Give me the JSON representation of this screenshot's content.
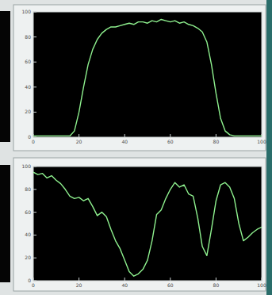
{
  "chart_data": [
    {
      "type": "line",
      "color": "#8ef08e",
      "grid": false,
      "x": [
        0,
        2,
        4,
        6,
        8,
        10,
        12,
        14,
        16,
        18,
        20,
        22,
        24,
        26,
        28,
        30,
        32,
        34,
        36,
        38,
        40,
        42,
        44,
        46,
        48,
        50,
        52,
        54,
        56,
        58,
        60,
        62,
        64,
        66,
        68,
        70,
        72,
        74,
        76,
        78,
        80,
        82,
        84,
        86,
        88,
        90,
        92,
        94,
        96,
        98,
        100
      ],
      "values": [
        1,
        1,
        1,
        1,
        1,
        1,
        1,
        1,
        1,
        5,
        20,
        40,
        58,
        70,
        78,
        83,
        86,
        88,
        88,
        89,
        90,
        91,
        90,
        92,
        92,
        91,
        93,
        92,
        94,
        93,
        92,
        93,
        91,
        92,
        90,
        89,
        87,
        84,
        76,
        58,
        35,
        15,
        5,
        2,
        1,
        1,
        1,
        1,
        1,
        1,
        1
      ],
      "xlim": [
        0,
        100
      ],
      "xticks": [
        0,
        20,
        40,
        60,
        80,
        100
      ],
      "ylim": [
        0,
        100
      ],
      "yticks": [
        0,
        20,
        40,
        60,
        80,
        100
      ]
    },
    {
      "type": "line",
      "color": "#8ef08e",
      "grid": false,
      "x": [
        0,
        2,
        4,
        6,
        8,
        10,
        12,
        14,
        16,
        18,
        20,
        22,
        24,
        26,
        28,
        30,
        32,
        34,
        36,
        38,
        40,
        42,
        44,
        46,
        48,
        50,
        52,
        54,
        56,
        58,
        60,
        62,
        64,
        66,
        68,
        70,
        72,
        74,
        76,
        78,
        80,
        82,
        84,
        86,
        88,
        90,
        92,
        94,
        96,
        98,
        100
      ],
      "values": [
        95,
        93,
        94,
        90,
        92,
        88,
        85,
        80,
        74,
        72,
        73,
        70,
        72,
        65,
        57,
        60,
        56,
        45,
        35,
        28,
        18,
        8,
        4,
        6,
        10,
        18,
        35,
        58,
        62,
        72,
        80,
        86,
        82,
        84,
        76,
        74,
        55,
        30,
        22,
        45,
        70,
        84,
        86,
        82,
        72,
        50,
        35,
        38,
        42,
        45,
        47
      ],
      "xlim": [
        0,
        100
      ],
      "xticks": [
        0,
        20,
        40,
        60,
        80,
        100
      ],
      "ylim": [
        0,
        100
      ],
      "yticks": [
        0,
        20,
        40,
        60,
        80,
        100
      ]
    }
  ]
}
